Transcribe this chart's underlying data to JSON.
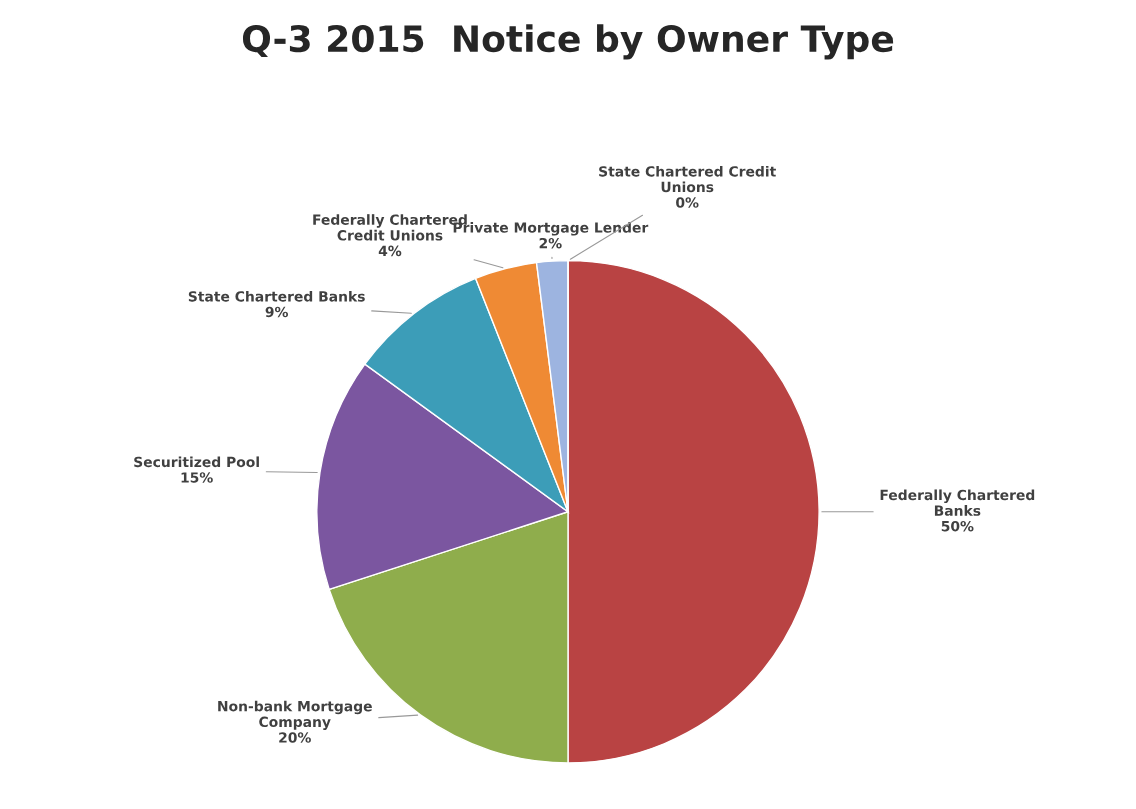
{
  "chart_data": {
    "type": "pie",
    "title": "Q-3 2015  Notice by Owner Type",
    "categories": [
      "Federally Chartered Banks",
      "Non-bank Mortgage Company",
      "Securitized Pool",
      "State Chartered Banks",
      "Federally Chartered Credit Unions",
      "Private Mortgage Lender",
      "State Chartered Credit Unions"
    ],
    "values": [
      50,
      20,
      15,
      9,
      4,
      2,
      0
    ],
    "colors": [
      "#b94343",
      "#8fad4c",
      "#7b56a0",
      "#3c9db8",
      "#ef8a34",
      "#9db4e0",
      "#e8a0a0"
    ],
    "value_labels": [
      "50%",
      "20%",
      "15%",
      "9%",
      "4%",
      "2%",
      "0%"
    ],
    "legend": false
  }
}
